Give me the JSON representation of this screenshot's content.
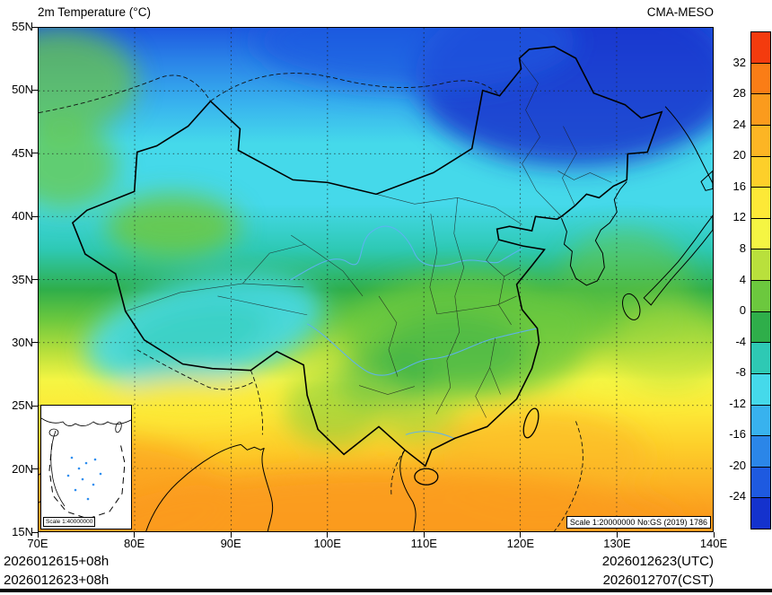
{
  "header": {
    "title": "2m Temperature (°C)",
    "model": "CMA-MESO"
  },
  "map": {
    "lat_labels": [
      "55N",
      "50N",
      "45N",
      "40N",
      "35N",
      "30N",
      "25N",
      "20N",
      "15N"
    ],
    "lon_labels": [
      "70E",
      "80E",
      "90E",
      "100E",
      "110E",
      "120E",
      "130E",
      "140E"
    ],
    "inset_scale_label": "Scale 1:40000000",
    "scale_note": "Scale 1:20000000 No:GS (2019) 1786"
  },
  "colorbar": {
    "tick_labels": [
      "32",
      "28",
      "24",
      "20",
      "16",
      "12",
      "8",
      "4",
      "0",
      "-4",
      "-8",
      "-12",
      "-16",
      "-20",
      "-24"
    ],
    "colors": [
      "#f43b0e",
      "#fa7d16",
      "#fb9b1d",
      "#fcb524",
      "#fdcf2a",
      "#fde937",
      "#f5f543",
      "#b9e03c",
      "#6cc83e",
      "#2fae4a",
      "#2ec9b4",
      "#45d9ea",
      "#38b2ee",
      "#2b86e8",
      "#1e5ae0",
      "#1432cd"
    ]
  },
  "footer": {
    "left_line1": "2026012615+08h",
    "left_line2": "2026012623+08h",
    "right_line1": "2026012623(UTC)",
    "right_line2": "2026012707(CST)"
  }
}
